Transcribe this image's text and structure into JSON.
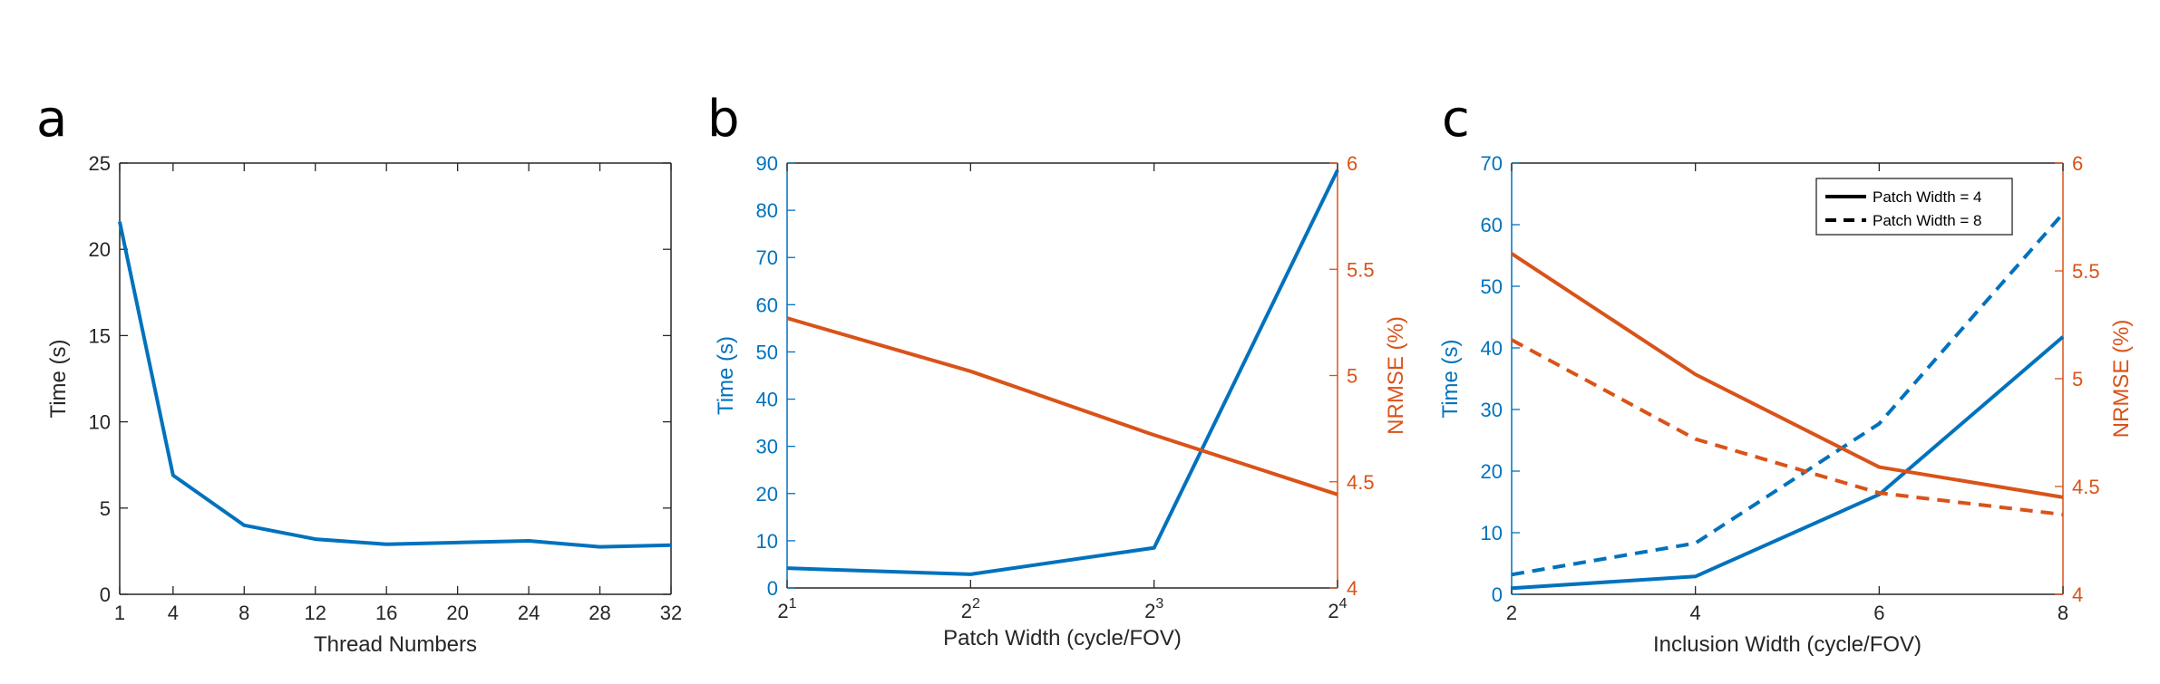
{
  "figure": {
    "colors": {
      "blue": "#0072BD",
      "orange": "#D95319",
      "axis": "#262626"
    }
  },
  "chart_data": [
    {
      "type": "line",
      "panel_label": "a",
      "xlabel": "Thread Numbers",
      "ylabel": "Time (s)",
      "xlim": [
        1,
        32
      ],
      "ylim": [
        0,
        25
      ],
      "xticks": [
        1,
        4,
        8,
        12,
        16,
        20,
        24,
        28,
        32
      ],
      "xtick_labels": [
        "1",
        "4",
        "8",
        "12",
        "16",
        "20",
        "24",
        "28",
        "32"
      ],
      "yticks": [
        0,
        5,
        10,
        15,
        20,
        25
      ],
      "ytick_labels": [
        "0",
        "5",
        "10",
        "15",
        "20",
        "25"
      ],
      "series": [
        {
          "axis": "left",
          "color": "blue",
          "style": "solid",
          "x": [
            1,
            4,
            8,
            12,
            16,
            20,
            24,
            28,
            32
          ],
          "y": [
            21.6,
            6.9,
            4.0,
            3.2,
            2.9,
            3.0,
            3.1,
            2.75,
            2.85
          ]
        }
      ]
    },
    {
      "type": "line",
      "panel_label": "b",
      "xlabel": "Patch Width (cycle/FOV)",
      "ylabel": "Time (s)",
      "ylabel_right": "NRMSE (%)",
      "xscale": "log2",
      "xlim": [
        2,
        16
      ],
      "ylim": [
        0,
        90
      ],
      "ylim_right": [
        4,
        6
      ],
      "xticks": [
        2,
        4,
        8,
        16
      ],
      "xtick_base": "2",
      "xtick_exponents": [
        "1",
        "2",
        "3",
        "4"
      ],
      "yticks": [
        0,
        10,
        20,
        30,
        40,
        50,
        60,
        70,
        80,
        90
      ],
      "ytick_labels": [
        "0",
        "10",
        "20",
        "30",
        "40",
        "50",
        "60",
        "70",
        "80",
        "90"
      ],
      "yticks_right": [
        4,
        4.5,
        5,
        5.5,
        6
      ],
      "ytick_labels_right": [
        "4",
        "4.5",
        "5",
        "5.5",
        "6"
      ],
      "series": [
        {
          "axis": "left",
          "color": "blue",
          "style": "solid",
          "x": [
            2,
            4,
            8,
            16
          ],
          "y": [
            4.2,
            2.9,
            8.5,
            88.5
          ]
        },
        {
          "axis": "right",
          "color": "orange",
          "style": "solid",
          "x": [
            2,
            4,
            8,
            16
          ],
          "y": [
            5.27,
            5.02,
            4.72,
            4.44
          ]
        }
      ]
    },
    {
      "type": "line",
      "panel_label": "c",
      "xlabel": "Inclusion Width (cycle/FOV)",
      "ylabel": "Time (s)",
      "ylabel_right": "NRMSE (%)",
      "xlim": [
        2,
        8
      ],
      "ylim": [
        0,
        70
      ],
      "ylim_right": [
        4,
        6
      ],
      "xticks": [
        2,
        4,
        6,
        8
      ],
      "xtick_labels": [
        "2",
        "4",
        "6",
        "8"
      ],
      "yticks": [
        0,
        10,
        20,
        30,
        40,
        50,
        60,
        70
      ],
      "ytick_labels": [
        "0",
        "10",
        "20",
        "30",
        "40",
        "50",
        "60",
        "70"
      ],
      "yticks_right": [
        4,
        4.5,
        5,
        5.5,
        6
      ],
      "ytick_labels_right": [
        "4",
        "4.5",
        "5",
        "5.5",
        "6"
      ],
      "legend": {
        "placement": "top-right",
        "entries": [
          {
            "label": "Patch Width = 4",
            "style": "solid"
          },
          {
            "label": "Patch Width = 8",
            "style": "dashed"
          }
        ]
      },
      "series": [
        {
          "name": "Patch Width = 4",
          "axis": "left",
          "color": "blue",
          "style": "solid",
          "x": [
            2,
            4,
            6,
            8
          ],
          "y": [
            1.0,
            2.9,
            16.2,
            41.8
          ]
        },
        {
          "name": "Patch Width = 8",
          "axis": "left",
          "color": "blue",
          "style": "dashed",
          "x": [
            2,
            4,
            6,
            8
          ],
          "y": [
            3.2,
            8.3,
            27.7,
            61.8
          ]
        },
        {
          "name": "Patch Width = 4",
          "axis": "right",
          "color": "orange",
          "style": "solid",
          "x": [
            2,
            4,
            6,
            8
          ],
          "y": [
            5.58,
            5.02,
            4.59,
            4.45
          ]
        },
        {
          "name": "Patch Width = 8",
          "axis": "right",
          "color": "orange",
          "style": "dashed",
          "x": [
            2,
            4,
            6,
            8
          ],
          "y": [
            5.18,
            4.72,
            4.47,
            4.37
          ]
        }
      ]
    }
  ]
}
